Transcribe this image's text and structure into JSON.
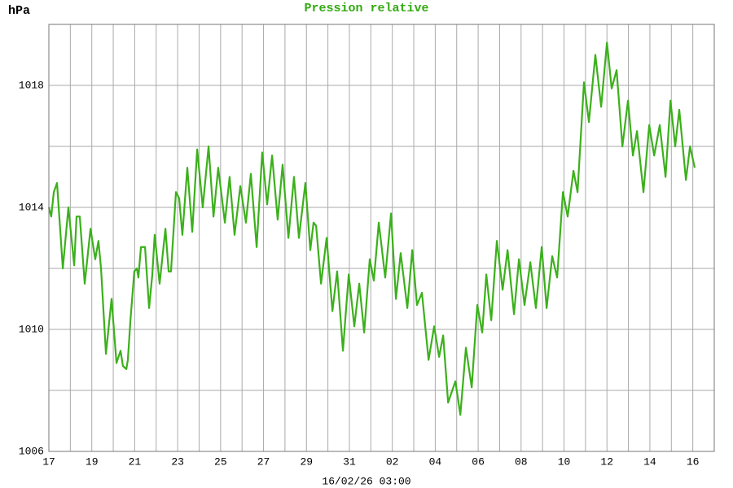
{
  "chart_data": {
    "type": "line",
    "title": "Pression relative",
    "y_label": "hPa",
    "x_label": "16/02/26 03:00",
    "grid": true,
    "xlim": [
      0,
      31
    ],
    "xticks": [
      {
        "value": 0,
        "label": "17"
      },
      {
        "value": 2,
        "label": "19"
      },
      {
        "value": 4,
        "label": "21"
      },
      {
        "value": 6,
        "label": "23"
      },
      {
        "value": 8,
        "label": "25"
      },
      {
        "value": 10,
        "label": "27"
      },
      {
        "value": 12,
        "label": "29"
      },
      {
        "value": 14,
        "label": "31"
      },
      {
        "value": 16,
        "label": "02"
      },
      {
        "value": 18,
        "label": "04"
      },
      {
        "value": 20,
        "label": "06"
      },
      {
        "value": 22,
        "label": "08"
      },
      {
        "value": 24,
        "label": "10"
      },
      {
        "value": 26,
        "label": "12"
      },
      {
        "value": 28,
        "label": "14"
      },
      {
        "value": 30,
        "label": "16"
      }
    ],
    "minor_xticks": [
      1,
      3,
      5,
      7,
      9,
      11,
      13,
      15,
      17,
      19,
      21,
      23,
      25,
      27,
      29
    ],
    "ylim": [
      1006,
      1020
    ],
    "yticks": [
      1006,
      1010,
      1014,
      1018
    ],
    "minor_yticks": [
      1008,
      1012,
      1016
    ],
    "series": [
      {
        "color": "#3cb01c",
        "x": [
          0,
          0.11,
          0.23,
          0.38,
          0.65,
          0.91,
          1.18,
          1.29,
          1.44,
          1.67,
          1.94,
          2.16,
          2.31,
          2.43,
          2.66,
          2.92,
          3.15,
          3.34,
          3.45,
          3.61,
          3.68,
          3.8,
          3.98,
          4.1,
          4.17,
          4.29,
          4.48,
          4.67,
          4.82,
          4.93,
          5.16,
          5.43,
          5.58,
          5.69,
          5.92,
          6.07,
          6.22,
          6.45,
          6.68,
          6.91,
          7.17,
          7.44,
          7.67,
          7.89,
          8.2,
          8.42,
          8.65,
          8.92,
          9.18,
          9.41,
          9.68,
          9.94,
          10.17,
          10.4,
          10.66,
          10.89,
          11.16,
          11.42,
          11.65,
          11.95,
          12.18,
          12.33,
          12.45,
          12.68,
          12.94,
          13.21,
          13.43,
          13.7,
          13.97,
          14.23,
          14.46,
          14.69,
          14.95,
          15.14,
          15.37,
          15.67,
          15.94,
          16.17,
          16.39,
          16.7,
          16.93,
          17.15,
          17.38,
          17.69,
          17.95,
          18.18,
          18.37,
          18.6,
          18.94,
          19.17,
          19.43,
          19.7,
          19.96,
          20.19,
          20.38,
          20.61,
          20.87,
          21.14,
          21.37,
          21.67,
          21.9,
          22.16,
          22.43,
          22.69,
          22.96,
          23.19,
          23.45,
          23.68,
          23.95,
          24.17,
          24.44,
          24.63,
          24.93,
          25.16,
          25.46,
          25.73,
          26.0,
          26.22,
          26.45,
          26.72,
          26.98,
          27.21,
          27.4,
          27.7,
          27.97,
          28.2,
          28.46,
          28.73,
          28.96,
          29.18,
          29.37,
          29.68,
          29.87,
          30.09
        ],
        "values": [
          1014.0,
          1013.7,
          1014.5,
          1014.8,
          1012.0,
          1014.0,
          1012.1,
          1013.7,
          1013.7,
          1011.5,
          1013.3,
          1012.3,
          1012.9,
          1012.0,
          1009.2,
          1011.0,
          1008.9,
          1009.3,
          1008.8,
          1008.7,
          1009.0,
          1010.3,
          1011.9,
          1012.0,
          1011.7,
          1012.7,
          1012.7,
          1010.7,
          1011.8,
          1013.1,
          1011.5,
          1013.3,
          1011.9,
          1011.9,
          1014.5,
          1014.3,
          1013.1,
          1015.3,
          1013.2,
          1015.9,
          1014.0,
          1016.0,
          1013.7,
          1015.3,
          1013.5,
          1015.0,
          1013.1,
          1014.7,
          1013.5,
          1015.1,
          1012.7,
          1015.8,
          1014.1,
          1015.7,
          1013.6,
          1015.4,
          1013.0,
          1015.0,
          1013.0,
          1014.8,
          1012.6,
          1013.5,
          1013.4,
          1011.5,
          1013.0,
          1010.6,
          1011.9,
          1009.3,
          1011.8,
          1010.1,
          1011.5,
          1009.9,
          1012.3,
          1011.6,
          1013.5,
          1011.7,
          1013.8,
          1011.0,
          1012.5,
          1010.7,
          1012.6,
          1010.8,
          1011.2,
          1009.0,
          1010.1,
          1009.1,
          1009.8,
          1007.6,
          1008.3,
          1007.2,
          1009.4,
          1008.1,
          1010.8,
          1009.9,
          1011.8,
          1010.3,
          1012.9,
          1011.3,
          1012.6,
          1010.5,
          1012.3,
          1010.8,
          1012.2,
          1010.7,
          1012.7,
          1010.7,
          1012.4,
          1011.7,
          1014.5,
          1013.7,
          1015.2,
          1014.5,
          1018.1,
          1016.8,
          1019.0,
          1017.3,
          1019.4,
          1017.9,
          1018.5,
          1016.0,
          1017.5,
          1015.7,
          1016.5,
          1014.5,
          1016.7,
          1015.7,
          1016.7,
          1015.0,
          1017.5,
          1016.0,
          1017.2,
          1014.9,
          1016.0,
          1015.3
        ]
      }
    ]
  }
}
